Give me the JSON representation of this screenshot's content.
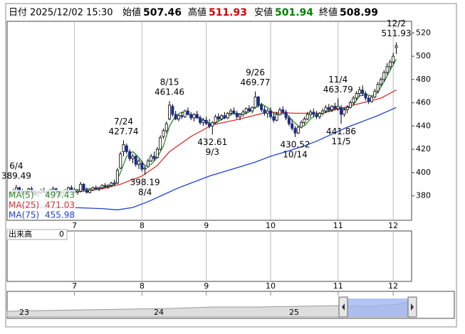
{
  "header": {
    "date_label": "日付",
    "datetime": "2025/12/02 15:30",
    "open_label": "始値",
    "open": 507.46,
    "high_label": "高値",
    "high": 511.93,
    "low_label": "安値",
    "low": 501.94,
    "close_label": "終値",
    "close": 508.99
  },
  "chart_data": {
    "type": "candlestick",
    "up_color": "#ffffff",
    "down_color": "#1c2c8c",
    "xlim": [
      -1,
      131
    ],
    "ylim": [
      359,
      530
    ],
    "yticks": [
      380,
      400,
      420,
      440,
      460,
      480,
      500,
      520
    ],
    "xticks": [
      {
        "value": 21,
        "label": "7"
      },
      {
        "value": 43,
        "label": "8"
      },
      {
        "value": 64,
        "label": "9"
      },
      {
        "value": 85,
        "label": "10"
      },
      {
        "value": 107,
        "label": "11"
      },
      {
        "value": 125,
        "label": "12"
      }
    ],
    "candles": [
      [
        381,
        384,
        379,
        383
      ],
      [
        383,
        386,
        381,
        385
      ],
      [
        385,
        389.49,
        384,
        387
      ],
      [
        387,
        388,
        383,
        384
      ],
      [
        384,
        386,
        381,
        382
      ],
      [
        382,
        385,
        380,
        384
      ],
      [
        384,
        387,
        382,
        386
      ],
      [
        386,
        388,
        383,
        384
      ],
      [
        384,
        385,
        380,
        381
      ],
      [
        381,
        384,
        379,
        383
      ],
      [
        383,
        386,
        381,
        385
      ],
      [
        385,
        387,
        382,
        383
      ],
      [
        383,
        385,
        380,
        382
      ],
      [
        382,
        386,
        381,
        385
      ],
      [
        385,
        388,
        383,
        386
      ],
      [
        386,
        387,
        381,
        382
      ],
      [
        382,
        384,
        379,
        380
      ],
      [
        380,
        384,
        379,
        383
      ],
      [
        383,
        386,
        382,
        385
      ],
      [
        385,
        388,
        383,
        387
      ],
      [
        387,
        389,
        384,
        385
      ],
      [
        385,
        387,
        382,
        383
      ],
      [
        383,
        385,
        381,
        384
      ],
      [
        384,
        392,
        383,
        390
      ],
      [
        390,
        391,
        384,
        385
      ],
      [
        385,
        387,
        382,
        383
      ],
      [
        383,
        386,
        382,
        385
      ],
      [
        385,
        388,
        384,
        387
      ],
      [
        387,
        389,
        385,
        386
      ],
      [
        386,
        388,
        384,
        387
      ],
      [
        387,
        390,
        386,
        389
      ],
      [
        389,
        391,
        387,
        388
      ],
      [
        388,
        390,
        386,
        389
      ],
      [
        389,
        392,
        388,
        391
      ],
      [
        391,
        394,
        389,
        390
      ],
      [
        391,
        404,
        390,
        402
      ],
      [
        404,
        418,
        403,
        416
      ],
      [
        418,
        427.74,
        414,
        424
      ],
      [
        423,
        425,
        416,
        418
      ],
      [
        418,
        420,
        410,
        412
      ],
      [
        412,
        416,
        408,
        414
      ],
      [
        414,
        415,
        405,
        407
      ],
      [
        407,
        412,
        403,
        410
      ],
      [
        408,
        410,
        401,
        403
      ],
      [
        403,
        406,
        398.19,
        404
      ],
      [
        405,
        412,
        404,
        410
      ],
      [
        410,
        416,
        409,
        414
      ],
      [
        414,
        418,
        410,
        412
      ],
      [
        413,
        422,
        412,
        420
      ],
      [
        420,
        432,
        419,
        430
      ],
      [
        431,
        438,
        429,
        436
      ],
      [
        436,
        444,
        434,
        442
      ],
      [
        446,
        461.46,
        445,
        458
      ],
      [
        457,
        459,
        448,
        450
      ],
      [
        450,
        453,
        445,
        446
      ],
      [
        446,
        450,
        444,
        449
      ],
      [
        449,
        452,
        446,
        448
      ],
      [
        448,
        454,
        447,
        453
      ],
      [
        453,
        456,
        449,
        450
      ],
      [
        450,
        452,
        445,
        447
      ],
      [
        447,
        451,
        444,
        450
      ],
      [
        450,
        453,
        446,
        447
      ],
      [
        447,
        449,
        441,
        443
      ],
      [
        443,
        447,
        440,
        445
      ],
      [
        445,
        448,
        441,
        442
      ],
      [
        442,
        446,
        438,
        440
      ],
      [
        440,
        444,
        432.61,
        443
      ],
      [
        443,
        450,
        442,
        448
      ],
      [
        448,
        451,
        444,
        446
      ],
      [
        446,
        450,
        445,
        449
      ],
      [
        449,
        452,
        446,
        447
      ],
      [
        447,
        452,
        446,
        451
      ],
      [
        451,
        455,
        449,
        453
      ],
      [
        453,
        456,
        450,
        451
      ],
      [
        451,
        453,
        446,
        448
      ],
      [
        448,
        451,
        445,
        450
      ],
      [
        450,
        454,
        448,
        452
      ],
      [
        452,
        456,
        450,
        455
      ],
      [
        455,
        458,
        452,
        453
      ],
      [
        453,
        457,
        451,
        456
      ],
      [
        456,
        469.77,
        455,
        465
      ],
      [
        465,
        466,
        456,
        458
      ],
      [
        458,
        460,
        452,
        454
      ],
      [
        454,
        457,
        449,
        451
      ],
      [
        451,
        455,
        447,
        453
      ],
      [
        453,
        456,
        446,
        448
      ],
      [
        448,
        451,
        443,
        445
      ],
      [
        445,
        452,
        444,
        450
      ],
      [
        450,
        456,
        449,
        454
      ],
      [
        454,
        457,
        451,
        452
      ],
      [
        452,
        454,
        445,
        447
      ],
      [
        447,
        449,
        440,
        442
      ],
      [
        442,
        446,
        436,
        438
      ],
      [
        438,
        440,
        430.52,
        434
      ],
      [
        434,
        440,
        433,
        439
      ],
      [
        439,
        445,
        438,
        443
      ],
      [
        443,
        448,
        441,
        446
      ],
      [
        446,
        452,
        445,
        450
      ],
      [
        450,
        454,
        447,
        452
      ],
      [
        452,
        455,
        448,
        450
      ],
      [
        450,
        453,
        446,
        448
      ],
      [
        448,
        452,
        446,
        451
      ],
      [
        451,
        455,
        449,
        453
      ],
      [
        453,
        458,
        451,
        456
      ],
      [
        456,
        459,
        452,
        454
      ],
      [
        454,
        458,
        452,
        457
      ],
      [
        457,
        460,
        454,
        455
      ],
      [
        455,
        463.79,
        453,
        457
      ],
      [
        456,
        458,
        441.86,
        450
      ],
      [
        450,
        456,
        448,
        454
      ],
      [
        454,
        458,
        451,
        456
      ],
      [
        456,
        462,
        455,
        460
      ],
      [
        460,
        466,
        458,
        464
      ],
      [
        464,
        470,
        462,
        468
      ],
      [
        468,
        474,
        465,
        471
      ],
      [
        471,
        475,
        466,
        468
      ],
      [
        468,
        470,
        462,
        464
      ],
      [
        464,
        466,
        459,
        461
      ],
      [
        461,
        466,
        460,
        465
      ],
      [
        465,
        472,
        464,
        470
      ],
      [
        470,
        478,
        468,
        476
      ],
      [
        476,
        482,
        474,
        480
      ],
      [
        480,
        488,
        478,
        486
      ],
      [
        486,
        494,
        484,
        491
      ],
      [
        491,
        497,
        488,
        495
      ],
      [
        495,
        503,
        493,
        500
      ],
      [
        507.46,
        511.93,
        501.94,
        508.99
      ]
    ],
    "annotations": [
      {
        "date": "6/4",
        "value": 389.49
      },
      {
        "date": "7/24",
        "value": 427.74
      },
      {
        "date": "8/4",
        "value": 398.19
      },
      {
        "date": "8/15",
        "value": 461.46
      },
      {
        "date": "9/3",
        "value": 432.61
      },
      {
        "date": "9/26",
        "value": 469.77
      },
      {
        "date": "10/14",
        "value": 430.52
      },
      {
        "date": "11/4",
        "value": 463.79
      },
      {
        "date": "11/5",
        "value": 441.86
      },
      {
        "date": "12/2",
        "value": 511.93
      }
    ],
    "series": [
      {
        "name": "MA(75)",
        "color": "#1f3fd0",
        "x": [
          0,
          10,
          20,
          30,
          35,
          40,
          45,
          50,
          55,
          60,
          65,
          70,
          75,
          80,
          85,
          90,
          95,
          100,
          105,
          110,
          115,
          120,
          126
        ],
        "values": [
          371,
          370,
          370,
          369,
          368,
          370,
          375,
          381,
          387,
          392,
          397,
          401,
          405,
          409,
          414,
          418,
          422,
          427,
          433,
          439,
          444,
          449,
          455.98
        ]
      },
      {
        "name": "MA(25)",
        "color": "#d83030",
        "x": [
          0,
          10,
          20,
          24,
          30,
          36,
          43,
          48,
          52,
          59,
          66,
          75,
          84,
          93,
          102,
          112,
          121,
          126
        ],
        "values": [
          382,
          383,
          383,
          384,
          386,
          390,
          397,
          406,
          418,
          431,
          441,
          446,
          452,
          451,
          451,
          458,
          464,
          471.03
        ]
      },
      {
        "name": "MA(5)",
        "color": "#2a8a2a",
        "x": [
          0,
          5,
          10,
          15,
          20,
          25,
          30,
          34,
          36,
          38,
          40,
          42,
          44,
          46,
          48,
          50,
          52,
          54,
          56,
          58,
          60,
          62,
          64,
          66,
          68,
          70,
          72,
          74,
          76,
          78,
          80,
          82,
          84,
          86,
          88,
          90,
          92,
          94,
          96,
          98,
          100,
          102,
          104,
          106,
          108,
          110,
          112,
          114,
          116,
          118,
          120,
          122,
          124,
          126
        ],
        "values": [
          383,
          384,
          383,
          384,
          385,
          386,
          387,
          389,
          400,
          414,
          418,
          413,
          406,
          407,
          413,
          423,
          440,
          449,
          452,
          450,
          449,
          447,
          444,
          441,
          444,
          447,
          450,
          451,
          450,
          452,
          456,
          459,
          456,
          451,
          450,
          451,
          445,
          440,
          440,
          446,
          450,
          451,
          453,
          455,
          455,
          455,
          458,
          466,
          467,
          466,
          469,
          478,
          488,
          497.43
        ]
      }
    ],
    "legend_order": [
      2,
      1,
      0
    ]
  },
  "volume": {
    "label": "出来高",
    "value": 0
  },
  "navigator": {
    "labels": [
      "23",
      "24",
      "25"
    ]
  }
}
